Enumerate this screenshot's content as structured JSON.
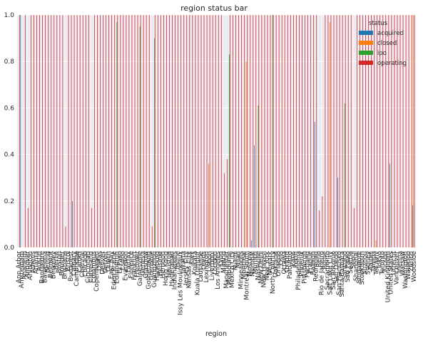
{
  "chart_data": {
    "type": "bar",
    "title": "region status bar",
    "xlabel": "region",
    "ylabel": "",
    "ylim": [
      0,
      1.0
    ],
    "yticks": [
      "0.0",
      "0.2",
      "0.4",
      "0.6",
      "0.8",
      "1.0"
    ],
    "grid": true,
    "legend": {
      "title": "status",
      "placement": "top-right"
    },
    "categories": [
      "Ann Arbor",
      "Amsterdam",
      "Anaheim",
      "Andover",
      "Arlington",
      "Athens",
      "Atlanta",
      "Austin",
      "Bangalore",
      "Barcelona",
      "Beijing",
      "Belmont",
      "Berkeley",
      "Berlin",
      "Boston",
      "Boulder",
      "Brisbane",
      "Bristol",
      "Budapest",
      "Calgary",
      "Cambridge",
      "Cardiff",
      "Chennai",
      "Chicago",
      "Cincinnati",
      "Cleveland",
      "Columbus",
      "Copenhagen",
      "Dallas",
      "Denver",
      "Detroit",
      "Dublin",
      "East Bay",
      "Eden Prairie",
      "Edinburgh",
      "El Paso",
      "Espoo",
      "Evanston",
      "Fairfax",
      "Florence",
      "Frankfurt",
      "Fremont",
      "Gainesville",
      "Geneva",
      "Glasgow",
      "Gothenburg",
      "Grenoble",
      "Guangzhou",
      "Hamburg",
      "Helsinki",
      "Herndon",
      "Hong Kong",
      "Houston",
      "Hyderabad",
      "Indianapolis",
      "Irvine",
      "Issy Les Moulineaux",
      "Jakarta",
      "Jersey City",
      "Kansas City",
      "Kiev",
      "Kolkata",
      "Kuala Lumpur",
      "Lausanne",
      "Leeds",
      "Lexington",
      "Lisbon",
      "Liverpool",
      "London",
      "Los Angeles",
      "Lyon",
      "Madrid",
      "Manchester",
      "Melbourne",
      "Mexico City",
      "Miami",
      "Milan",
      "Minneapolis",
      "Montreal",
      "Montreal South",
      "Moscow",
      "Mumbai",
      "Munich",
      "Nashville",
      "New Delhi",
      "New Haven",
      "New York",
      "Newark",
      "North County",
      "Oakland",
      "Orlando",
      "Oslo",
      "Ottawa",
      "Oxford",
      "Palo Alto",
      "Paris",
      "Perth",
      "Philadelphia",
      "Phoenix",
      "Pittsburgh",
      "Portland",
      "Prague",
      "Raleigh",
      "Redmond",
      "Reno",
      "Rio de Janeiro",
      "Rome",
      "Sacramento",
      "Salt Lake City",
      "San Antonio",
      "San Diego",
      "San Francisco",
      "Santa Barbara",
      "Santiago",
      "Sao Paulo",
      "Seattle",
      "Seoul",
      "Shanghai",
      "Singapore",
      "Stockholm",
      "Suzhou",
      "Sydney",
      "Taipei",
      "Tampa",
      "Tel Aviv",
      "Tokyo",
      "Toronto",
      "Tucson",
      "United Kingdom",
      "United States",
      "Utrecht",
      "Vancouver",
      "Vienna",
      "Warsaw",
      "Washington",
      "Waterloo",
      "Zurich",
      "Woodside"
    ],
    "series": [
      {
        "name": "acquired",
        "color": "#1f77b4",
        "values": [
          0,
          1,
          0,
          0,
          0,
          0,
          0,
          0,
          0,
          0,
          0,
          0,
          0,
          0,
          0,
          0,
          0,
          0,
          0,
          0.2,
          0,
          0,
          0,
          0,
          0,
          0,
          0,
          0,
          0,
          0,
          0,
          0,
          0,
          0,
          0,
          0,
          0,
          0,
          0,
          0,
          0,
          0,
          0,
          0,
          0,
          0,
          0,
          0,
          0,
          0,
          0,
          0,
          0,
          0,
          0,
          0,
          0,
          0,
          0,
          0,
          0,
          0,
          0,
          0,
          0,
          0,
          0,
          0,
          0,
          0,
          0,
          0,
          0,
          0,
          0,
          0,
          0,
          0,
          0,
          0,
          0,
          0.03,
          0.44,
          0,
          0,
          0,
          0,
          0,
          0,
          0,
          0,
          0,
          0,
          0,
          0,
          0,
          0,
          0,
          0,
          0,
          0,
          0,
          0,
          0.54,
          0,
          0,
          0,
          0,
          0,
          0,
          0,
          0.3,
          0,
          0,
          0,
          0,
          0,
          0,
          0,
          0,
          0,
          0,
          0,
          0,
          0,
          0,
          0,
          0,
          0,
          0.36,
          0,
          0,
          0,
          0,
          0,
          0,
          0,
          0.18
        ]
      },
      {
        "name": "closed",
        "color": "#ff7f0e",
        "values": [
          0,
          0,
          0,
          0,
          0,
          0,
          0,
          0,
          0,
          0,
          0,
          0,
          0,
          0,
          0,
          0,
          0,
          0,
          0,
          0,
          0,
          0,
          0,
          0,
          0,
          0,
          0,
          0,
          0,
          0,
          0,
          0,
          0,
          0,
          0,
          0,
          0,
          0,
          0,
          0,
          0,
          0,
          0,
          0,
          0,
          0,
          0,
          0,
          0,
          0,
          0,
          0,
          0,
          0,
          0,
          0,
          0,
          0,
          0,
          0,
          0,
          0,
          0,
          0,
          0,
          0,
          0.36,
          0,
          0,
          0,
          0,
          0,
          0,
          0,
          0,
          0,
          0,
          0,
          0,
          0.8,
          0,
          0,
          0,
          0,
          0,
          0,
          0,
          0,
          0,
          0,
          0,
          0,
          0,
          0,
          0,
          0,
          0,
          0,
          0,
          0,
          0,
          0,
          0,
          0,
          0,
          0,
          0,
          0,
          0.97,
          0,
          0,
          0,
          0,
          0,
          0,
          0,
          0,
          0,
          0,
          0,
          0,
          0,
          0,
          0,
          0.03,
          0,
          0,
          0,
          0,
          0,
          0,
          0,
          0,
          0,
          0,
          0,
          0,
          1
        ]
      },
      {
        "name": "ipo",
        "color": "#2ca02c",
        "values": [
          0,
          0,
          0,
          0,
          0,
          0,
          0,
          0,
          0,
          0,
          0,
          0,
          0,
          0,
          0,
          0,
          0,
          0,
          0,
          0,
          0,
          0,
          0,
          0,
          0,
          0,
          0,
          0,
          0,
          0,
          0,
          0,
          0,
          0,
          0.97,
          0,
          0,
          0,
          0,
          0,
          0,
          0,
          0.95,
          0,
          0,
          0,
          0,
          0.9,
          0,
          0,
          0,
          0,
          0,
          0,
          0,
          0,
          0,
          0,
          0,
          0,
          0,
          0,
          0,
          0,
          0,
          0,
          0,
          0,
          0,
          0,
          0,
          0,
          0,
          0.83,
          0,
          0,
          0,
          0,
          0,
          0,
          0,
          0,
          0,
          0.61,
          0,
          0,
          0,
          0,
          1,
          0,
          0,
          0,
          0,
          0,
          0,
          0,
          0,
          0,
          0,
          0,
          0,
          0,
          0,
          0,
          0,
          0,
          0,
          0,
          0,
          0,
          0,
          0,
          0,
          0.62,
          0,
          0,
          0,
          0,
          0,
          0,
          0,
          0,
          0,
          0,
          0,
          0,
          0,
          0,
          0,
          0,
          0,
          0,
          0,
          0,
          0,
          0,
          0,
          0
        ]
      },
      {
        "name": "operating",
        "color": "#d62728",
        "values": [
          1,
          0,
          1,
          0.17,
          1,
          1,
          1,
          1,
          1,
          1,
          1,
          1,
          1,
          1,
          1,
          1,
          0.09,
          1,
          1,
          1,
          1,
          1,
          1,
          1,
          1,
          0.17,
          1,
          1,
          1,
          1,
          1,
          1,
          1,
          1,
          1,
          1,
          1,
          1,
          1,
          1,
          1,
          1,
          1,
          1,
          1,
          1,
          0.09,
          1,
          1,
          1,
          1,
          1,
          1,
          1,
          1,
          1,
          1,
          1,
          1,
          1,
          1,
          1,
          1,
          1,
          1,
          1,
          1,
          1,
          1,
          1,
          1,
          0.32,
          0.38,
          1,
          1,
          1,
          1,
          1,
          1,
          1,
          1,
          1,
          1,
          1,
          1,
          1,
          1,
          1,
          1,
          1,
          1,
          1,
          1,
          1,
          1,
          1,
          1,
          1,
          1,
          1,
          1,
          1,
          1,
          1,
          0.16,
          0.22,
          1,
          1,
          1,
          1,
          1,
          1,
          1,
          1,
          1,
          1,
          0.17,
          1,
          1,
          1,
          1,
          1,
          1,
          1,
          1,
          1,
          1,
          1,
          1,
          1,
          1,
          1,
          1,
          1,
          1,
          1,
          1,
          1
        ]
      }
    ]
  }
}
